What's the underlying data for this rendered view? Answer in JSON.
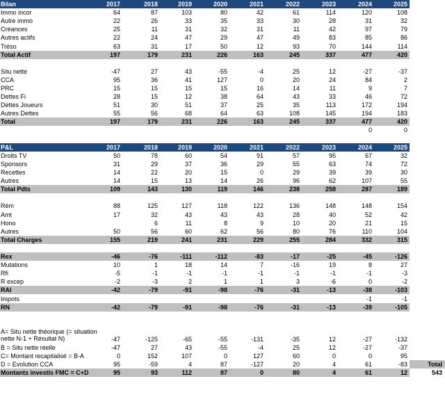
{
  "columns": [
    "2017",
    "2018",
    "2019",
    "2020",
    "2021",
    "2022",
    "2023",
    "2024",
    "2025"
  ],
  "rows": [
    {
      "style": "hdr",
      "label": "Bilan",
      "cells": [
        "2017",
        "2018",
        "2019",
        "2020",
        "2021",
        "2022",
        "2023",
        "2024",
        "2025"
      ]
    },
    {
      "style": "",
      "label": "Immo incor",
      "cells": [
        "64",
        "87",
        "103",
        "80",
        "42",
        "61",
        "114",
        "120",
        "108"
      ]
    },
    {
      "style": "",
      "label": "Autre immo",
      "cells": [
        "22",
        "26",
        "33",
        "35",
        "33",
        "30",
        "28",
        "31",
        "32"
      ]
    },
    {
      "style": "",
      "label": "Créances",
      "cells": [
        "25",
        "11",
        "31",
        "32",
        "31",
        "11",
        "42",
        "97",
        "79"
      ]
    },
    {
      "style": "",
      "label": "Autres actifs",
      "cells": [
        "22",
        "24",
        "47",
        "29",
        "47",
        "49",
        "83",
        "85",
        "86"
      ]
    },
    {
      "style": "",
      "label": "Tréso",
      "cells": [
        "63",
        "31",
        "17",
        "50",
        "12",
        "93",
        "70",
        "144",
        "114"
      ]
    },
    {
      "style": "tot",
      "label": "Total Actif",
      "cells": [
        "197",
        "179",
        "231",
        "226",
        "163",
        "245",
        "337",
        "477",
        "420"
      ]
    },
    {
      "style": "gap",
      "label": "",
      "cells": []
    },
    {
      "style": "",
      "label": "Situ nette",
      "cells": [
        "-47",
        "27",
        "43",
        "-55",
        "-4",
        "25",
        "12",
        "-27",
        "-37"
      ]
    },
    {
      "style": "",
      "label": "CCA",
      "cells": [
        "95",
        "36",
        "41",
        "127",
        "0",
        "20",
        "24",
        "84",
        "2"
      ]
    },
    {
      "style": "",
      "label": "PRC",
      "cells": [
        "15",
        "15",
        "15",
        "15",
        "16",
        "14",
        "11",
        "9",
        "7"
      ]
    },
    {
      "style": "",
      "label": "Dettes Fi",
      "cells": [
        "28",
        "15",
        "12",
        "38",
        "64",
        "43",
        "33",
        "46",
        "72"
      ]
    },
    {
      "style": "",
      "label": "Dettes Joueurs",
      "cells": [
        "51",
        "30",
        "51",
        "37",
        "25",
        "35",
        "113",
        "172",
        "194"
      ]
    },
    {
      "style": "",
      "label": "Autres Dettes",
      "cells": [
        "55",
        "56",
        "68",
        "64",
        "63",
        "108",
        "145",
        "194",
        "183"
      ]
    },
    {
      "style": "tot",
      "label": "Total",
      "cells": [
        "197",
        "179",
        "231",
        "226",
        "163",
        "245",
        "337",
        "477",
        "420"
      ]
    },
    {
      "style": "",
      "label": "",
      "cells": [
        "",
        "",
        "",
        "",
        "",
        "",
        "",
        "0",
        "0"
      ]
    },
    {
      "style": "gap",
      "label": "",
      "cells": []
    },
    {
      "style": "hdr",
      "label": "P&L",
      "cells": [
        "2017",
        "2018",
        "2019",
        "2020",
        "2021",
        "2022",
        "2023",
        "2024",
        "2025"
      ]
    },
    {
      "style": "",
      "label": "Droits TV",
      "cells": [
        "50",
        "78",
        "60",
        "54",
        "91",
        "57",
        "95",
        "67",
        "32"
      ]
    },
    {
      "style": "",
      "label": "Sponsors",
      "cells": [
        "31",
        "29",
        "37",
        "36",
        "29",
        "55",
        "63",
        "74",
        "72"
      ]
    },
    {
      "style": "",
      "label": "Recettes",
      "cells": [
        "14",
        "22",
        "20",
        "15",
        "0",
        "29",
        "39",
        "39",
        "30"
      ]
    },
    {
      "style": "",
      "label": "Autres",
      "cells": [
        "14",
        "15",
        "13",
        "14",
        "26",
        "96",
        "62",
        "107",
        "55"
      ]
    },
    {
      "style": "tot",
      "label": "Total Pdts",
      "cells": [
        "109",
        "143",
        "130",
        "119",
        "146",
        "238",
        "258",
        "287",
        "189"
      ]
    },
    {
      "style": "gap",
      "label": "",
      "cells": []
    },
    {
      "style": "",
      "label": "Rém",
      "cells": [
        "88",
        "125",
        "127",
        "118",
        "122",
        "136",
        "148",
        "148",
        "154"
      ]
    },
    {
      "style": "",
      "label": "Amt",
      "cells": [
        "17",
        "32",
        "43",
        "43",
        "43",
        "28",
        "40",
        "52",
        "42"
      ]
    },
    {
      "style": "",
      "label": "Hono",
      "cells": [
        "",
        "6",
        "11",
        "8",
        "9",
        "10",
        "20",
        "21",
        "15"
      ]
    },
    {
      "style": "",
      "label": "Autres",
      "cells": [
        "50",
        "56",
        "60",
        "62",
        "56",
        "80",
        "76",
        "110",
        "104"
      ]
    },
    {
      "style": "tot",
      "label": "Total Charges",
      "cells": [
        "155",
        "219",
        "241",
        "231",
        "229",
        "255",
        "284",
        "332",
        "315"
      ]
    },
    {
      "style": "gap",
      "label": "",
      "cells": []
    },
    {
      "style": "tot",
      "label": "Rex",
      "cells": [
        "-46",
        "-76",
        "-111",
        "-112",
        "-83",
        "-17",
        "-25",
        "-45",
        "-126"
      ]
    },
    {
      "style": "",
      "label": "Mutations",
      "cells": [
        "10",
        "1",
        "18",
        "14",
        "7",
        "-16",
        "19",
        "8",
        "27"
      ]
    },
    {
      "style": "",
      "label": "Rfi",
      "cells": [
        "-5",
        "-1",
        "-1",
        "-1",
        "-1",
        "-1",
        "-1",
        "-1",
        "-3"
      ]
    },
    {
      "style": "",
      "label": "R excep",
      "cells": [
        "-2",
        "-3",
        "2",
        "1",
        "1",
        "3",
        "-6",
        "0",
        "-2"
      ]
    },
    {
      "style": "tot",
      "label": "RAI",
      "cells": [
        "-42",
        "-79",
        "-91",
        "-98",
        "-76",
        "-31",
        "-13",
        "-38",
        "-103"
      ]
    },
    {
      "style": "",
      "label": "Impots",
      "cells": [
        "",
        "",
        "",
        "",
        "",
        "",
        "",
        "-1",
        "-1"
      ]
    },
    {
      "style": "tot",
      "label": "RN",
      "cells": [
        "-42",
        "-79",
        "-91",
        "-98",
        "-76",
        "-31",
        "-13",
        "-39",
        "-105"
      ]
    },
    {
      "style": "gap",
      "label": "",
      "cells": []
    },
    {
      "style": "gap",
      "label": "",
      "cells": []
    },
    {
      "style": "wrap",
      "label": "A= Situ nette théorique (= situation nette N-1 + Résultat N)",
      "cells": [
        "-47",
        "-125",
        "-65",
        "-55",
        "-131",
        "-35",
        "12",
        "-27",
        "-132"
      ]
    },
    {
      "style": "",
      "label": "B = Situ nette réelle",
      "cells": [
        "-47",
        "27",
        "43",
        "-55",
        "-4",
        "25",
        "12",
        "-27",
        "-37"
      ]
    },
    {
      "style": "",
      "label": "C= Montant recapitalisé = B-A",
      "cells": [
        "0",
        "152",
        "107",
        "0",
        "127",
        "60",
        "0",
        "0",
        "95"
      ]
    },
    {
      "style": "",
      "label": "D = Evolution CCA",
      "cells": [
        "95",
        "-59",
        "4",
        "87",
        "-127",
        "20",
        "4",
        "61",
        "-83"
      ]
    },
    {
      "style": "tot",
      "label": "Montants investis FMC = C+D",
      "cells": [
        "95",
        "93",
        "112",
        "87",
        "0",
        "80",
        "4",
        "61",
        "12"
      ]
    }
  ],
  "total_header": "Total",
  "total_value": "543"
}
